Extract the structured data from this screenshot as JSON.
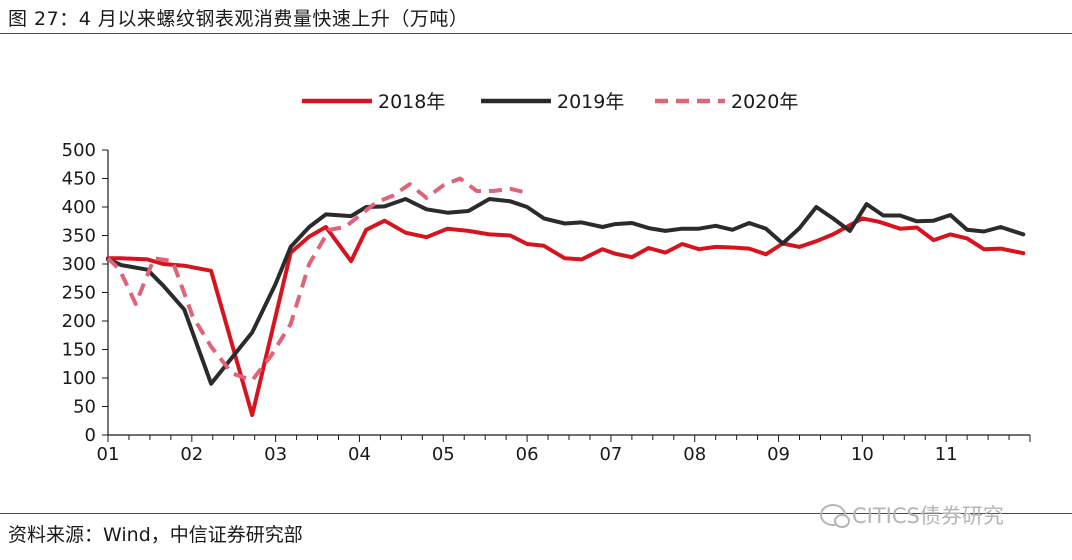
{
  "header": {
    "title": "图 27：4 月以来螺纹钢表观消费量快速上升（万吨）"
  },
  "footer": {
    "source": "资料来源：Wind，中信证券研究部"
  },
  "watermark": {
    "text": "CITICS债券研究"
  },
  "chart_data": {
    "type": "line",
    "title": "图 27：4 月以来螺纹钢表观消费量快速上升（万吨）",
    "xlabel": "",
    "ylabel": "",
    "ylim": [
      0,
      500
    ],
    "yticks": [
      0,
      50,
      100,
      150,
      200,
      250,
      300,
      350,
      400,
      450,
      500
    ],
    "xlim": [
      1,
      12
    ],
    "xticks": [
      {
        "label": "01",
        "value": 1
      },
      {
        "label": "02",
        "value": 2
      },
      {
        "label": "03",
        "value": 3
      },
      {
        "label": "04",
        "value": 4
      },
      {
        "label": "05",
        "value": 5
      },
      {
        "label": "06",
        "value": 6
      },
      {
        "label": "07",
        "value": 7
      },
      {
        "label": "08",
        "value": 8
      },
      {
        "label": "09",
        "value": 9
      },
      {
        "label": "10",
        "value": 10
      },
      {
        "label": "11",
        "value": 11
      }
    ],
    "grid": false,
    "legend_position": "top",
    "series": [
      {
        "name": "2018年",
        "color": "#d7141e",
        "dash": "solid",
        "x": [
          1.0,
          1.16,
          1.47,
          1.66,
          1.91,
          2.23,
          2.72,
          3.18,
          3.4,
          3.6,
          3.9,
          4.08,
          4.3,
          4.55,
          4.8,
          5.05,
          5.3,
          5.55,
          5.8,
          6.0,
          6.2,
          6.45,
          6.65,
          6.9,
          7.05,
          7.25,
          7.45,
          7.65,
          7.85,
          8.05,
          8.25,
          8.45,
          8.65,
          8.85,
          9.05,
          9.25,
          9.45,
          9.65,
          10.0,
          10.2,
          10.45,
          10.65,
          10.85,
          11.05,
          11.25,
          11.45,
          11.65,
          11.92
        ],
        "y": [
          310,
          310,
          308,
          300,
          297,
          288,
          35,
          320,
          348,
          365,
          305,
          360,
          376,
          355,
          347,
          362,
          358,
          352,
          350,
          335,
          332,
          310,
          308,
          326,
          318,
          312,
          328,
          320,
          335,
          326,
          330,
          329,
          327,
          317,
          336,
          330,
          340,
          352,
          380,
          374,
          362,
          364,
          342,
          352,
          345,
          326,
          327,
          319
        ]
      },
      {
        "name": "2019年",
        "color": "#2b2b2b",
        "dash": "solid",
        "x": [
          1.0,
          1.16,
          1.47,
          1.66,
          1.91,
          2.23,
          2.72,
          3.0,
          3.18,
          3.4,
          3.6,
          3.9,
          4.08,
          4.3,
          4.55,
          4.8,
          5.05,
          5.3,
          5.55,
          5.8,
          6.0,
          6.2,
          6.45,
          6.65,
          6.9,
          7.05,
          7.25,
          7.45,
          7.65,
          7.85,
          8.05,
          8.25,
          8.45,
          8.65,
          8.85,
          9.05,
          9.25,
          9.45,
          9.65,
          9.85,
          10.05,
          10.25,
          10.45,
          10.65,
          10.85,
          11.05,
          11.25,
          11.45,
          11.65,
          11.92
        ],
        "y": [
          308,
          298,
          290,
          262,
          220,
          90,
          180,
          265,
          330,
          365,
          387,
          384,
          400,
          401,
          414,
          396,
          390,
          393,
          414,
          410,
          400,
          380,
          371,
          373,
          365,
          370,
          372,
          363,
          358,
          362,
          362,
          367,
          360,
          372,
          362,
          336,
          363,
          400,
          380,
          358,
          405,
          385,
          385,
          375,
          376,
          386,
          360,
          357,
          365,
          352
        ]
      },
      {
        "name": "2020年",
        "color": "#e06377",
        "dash": "dashed",
        "x": [
          1.0,
          1.14,
          1.33,
          1.55,
          1.77,
          2.01,
          2.23,
          2.48,
          2.72,
          2.95,
          3.18,
          3.4,
          3.64,
          3.83,
          4.0,
          4.2,
          4.4,
          4.6,
          4.8,
          5.0,
          5.2,
          5.4,
          5.6,
          5.8,
          6.0
        ],
        "y": [
          310,
          290,
          230,
          310,
          305,
          208,
          155,
          108,
          96,
          140,
          195,
          300,
          360,
          365,
          385,
          408,
          420,
          440,
          416,
          438,
          450,
          428,
          428,
          432,
          425
        ]
      }
    ]
  }
}
